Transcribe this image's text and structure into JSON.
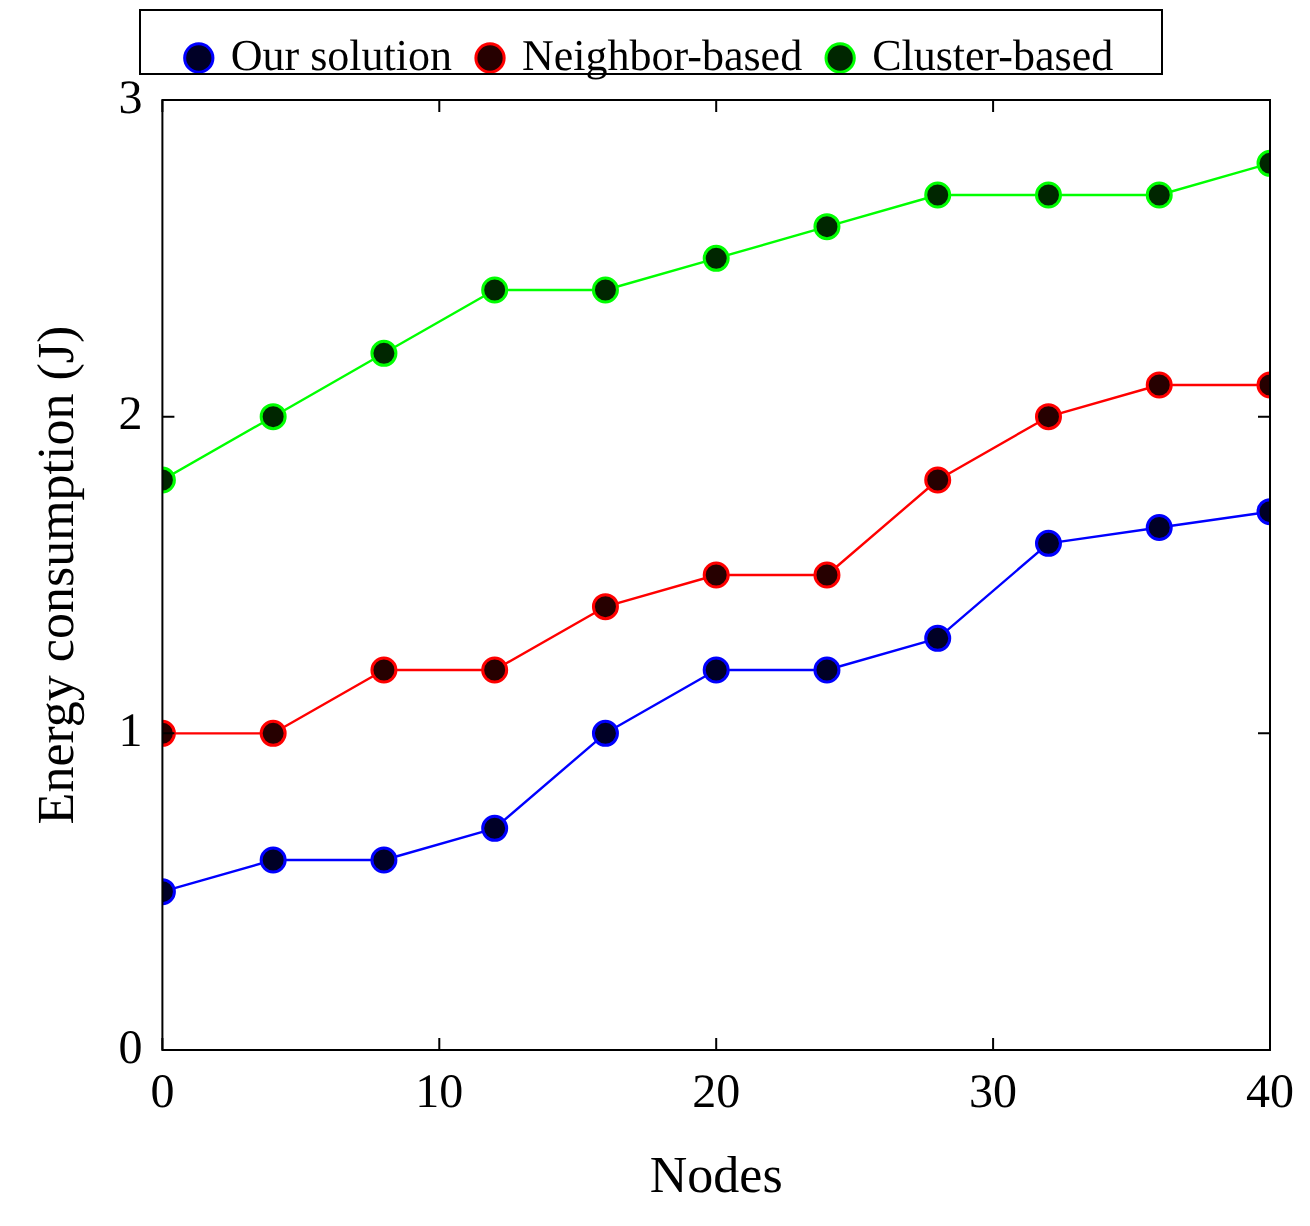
{
  "chart_data": {
    "type": "line",
    "xlabel": "Nodes",
    "ylabel": "Energy consumption (J)",
    "x": [
      0,
      4,
      8,
      12,
      16,
      20,
      24,
      28,
      32,
      36,
      40
    ],
    "series": [
      {
        "name": "Our solution",
        "color": "#0000ff",
        "values": [
          0.5,
          0.6,
          0.6,
          0.7,
          1.0,
          1.2,
          1.2,
          1.3,
          1.6,
          1.65,
          1.7
        ]
      },
      {
        "name": "Neighbor-based",
        "color": "#ff0000",
        "values": [
          1.0,
          1.0,
          1.2,
          1.2,
          1.4,
          1.5,
          1.5,
          1.8,
          2.0,
          2.1,
          2.1
        ]
      },
      {
        "name": "Cluster-based",
        "color": "#00ff00",
        "values": [
          1.8,
          2.0,
          2.2,
          2.4,
          2.4,
          2.5,
          2.6,
          2.7,
          2.7,
          2.7,
          2.8
        ]
      }
    ],
    "xlim": [
      0,
      40
    ],
    "xticks": [
      0,
      10,
      20,
      30,
      40
    ],
    "ylim": [
      0,
      3
    ],
    "yticks": [
      0,
      1,
      2,
      3
    ],
    "grid": false,
    "legend": "top",
    "marker": "circle",
    "line_style": "solid"
  }
}
